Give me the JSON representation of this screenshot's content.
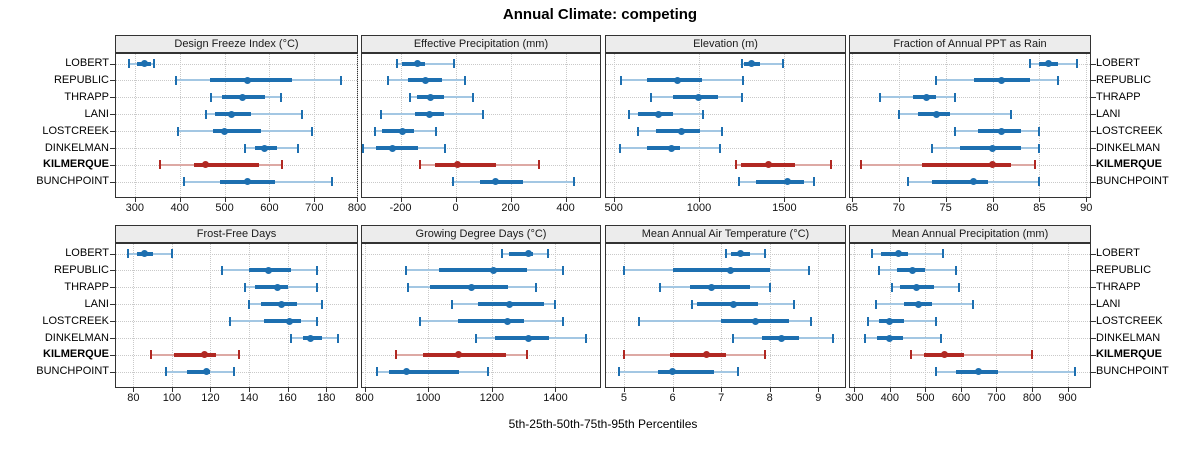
{
  "title": "Annual Climate: competing",
  "axis_label": "5th-25th-50th-75th-95th Percentiles",
  "colors": {
    "normal": "#1d6fb0",
    "normal_light": "#a3c7e3",
    "highlight": "#b12822",
    "highlight_light": "#dda9a4",
    "strip_bg": "#ececec",
    "panel_border": "#333333",
    "grid": "#c9c9c9"
  },
  "chart_data": {
    "type": "dot-whisker-trellis",
    "title": "Annual Climate: competing",
    "xlabel": "5th-25th-50th-75th-95th Percentiles",
    "percentile_levels": [
      "5th",
      "25th",
      "50th",
      "75th",
      "95th"
    ],
    "sites": [
      "LOBERT",
      "REPUBLIC",
      "THRAPP",
      "LANI",
      "LOSTCREEK",
      "DINKELMAN",
      "KILMERQUE",
      "BUNCHPOINT"
    ],
    "highlight_site": "KILMERQUE",
    "legend_position": "none",
    "grid": "dotted",
    "panels": [
      {
        "title": "Design Freeze Index (°C)",
        "grid_row": 0,
        "grid_col": 0,
        "xlim": [
          258,
          795
        ],
        "ticks": [
          300,
          400,
          500,
          600,
          700,
          800
        ],
        "values": [
          [
            288,
            304,
            322,
            337,
            343
          ],
          [
            392,
            467,
            550,
            650,
            760
          ],
          [
            469,
            494,
            540,
            590,
            626
          ],
          [
            458,
            478,
            515,
            558,
            672
          ],
          [
            397,
            474,
            500,
            580,
            695
          ],
          [
            546,
            567,
            589,
            617,
            663
          ],
          [
            355,
            432,
            457,
            576,
            628
          ],
          [
            410,
            489,
            551,
            613,
            739
          ]
        ]
      },
      {
        "title": "Effective Precipitation (mm)",
        "grid_row": 0,
        "grid_col": 1,
        "xlim": [
          -340,
          525
        ],
        "ticks": [
          -200,
          0,
          200,
          400
        ],
        "values": [
          [
            -213,
            -196,
            -140,
            -111,
            -6
          ],
          [
            -245,
            -172,
            -110,
            -50,
            33
          ],
          [
            -164,
            -140,
            -90,
            -41,
            62
          ],
          [
            -271,
            -149,
            -96,
            -43,
            99
          ],
          [
            -292,
            -269,
            -191,
            -152,
            -70
          ],
          [
            -337,
            -290,
            -228,
            -135,
            -39
          ],
          [
            -129,
            -76,
            6,
            146,
            304
          ],
          [
            -9,
            88,
            146,
            246,
            430
          ]
        ]
      },
      {
        "title": "Elevation (m)",
        "grid_row": 0,
        "grid_col": 2,
        "xlim": [
          455,
          1855
        ],
        "ticks": [
          500,
          1000,
          1500
        ],
        "values": [
          [
            1250,
            1265,
            1310,
            1355,
            1490
          ],
          [
            540,
            695,
            875,
            1020,
            1260
          ],
          [
            720,
            845,
            995,
            1110,
            1250
          ],
          [
            590,
            645,
            765,
            845,
            1025
          ],
          [
            640,
            750,
            895,
            1005,
            1135
          ],
          [
            535,
            695,
            840,
            890,
            1120
          ],
          [
            1215,
            1245,
            1405,
            1560,
            1775
          ],
          [
            1235,
            1335,
            1520,
            1615,
            1675
          ]
        ]
      },
      {
        "title": "Fraction of Annual PPT as Rain",
        "grid_row": 0,
        "grid_col": 3,
        "xlim": [
          64.8,
          90.4
        ],
        "ticks": [
          65,
          70,
          75,
          80,
          85,
          90
        ],
        "values": [
          [
            84,
            85,
            86,
            87,
            89
          ],
          [
            74,
            78,
            81,
            84,
            87
          ],
          [
            68,
            71.5,
            73,
            74,
            76
          ],
          [
            70,
            72,
            74,
            75.5,
            82
          ],
          [
            76,
            78.5,
            81,
            83,
            85
          ],
          [
            73.5,
            76.5,
            80,
            83,
            85
          ],
          [
            66,
            72.5,
            80,
            82,
            84.5
          ],
          [
            71,
            73.5,
            78,
            79.5,
            85
          ]
        ]
      },
      {
        "title": "Frost-Free Days",
        "grid_row": 1,
        "grid_col": 0,
        "xlim": [
          71,
          196
        ],
        "ticks": [
          80,
          100,
          120,
          140,
          160,
          180
        ],
        "values": [
          [
            77,
            82,
            86,
            90,
            100
          ],
          [
            126,
            140,
            150,
            162,
            175
          ],
          [
            138,
            143,
            155,
            160,
            175
          ],
          [
            140,
            146,
            157,
            165,
            178
          ],
          [
            130,
            148,
            161,
            167,
            175
          ],
          [
            162,
            168,
            172,
            178,
            186
          ],
          [
            89,
            101,
            117,
            123,
            135
          ],
          [
            97,
            108,
            118,
            120,
            132
          ]
        ]
      },
      {
        "title": "Growing Degree Days (°C)",
        "grid_row": 1,
        "grid_col": 1,
        "xlim": [
          792,
          1540
        ],
        "ticks": [
          800,
          1000,
          1200,
          1400
        ],
        "values": [
          [
            1233,
            1255,
            1315,
            1330,
            1378
          ],
          [
            930,
            1035,
            1205,
            1310,
            1425
          ],
          [
            935,
            1005,
            1135,
            1250,
            1340
          ],
          [
            1075,
            1155,
            1255,
            1365,
            1400
          ],
          [
            975,
            1095,
            1250,
            1300,
            1425
          ],
          [
            1150,
            1210,
            1315,
            1380,
            1495
          ],
          [
            900,
            985,
            1095,
            1245,
            1310
          ],
          [
            838,
            876,
            932,
            1096,
            1189
          ]
        ]
      },
      {
        "title": "Mean Annual Air Temperature (°C)",
        "grid_row": 1,
        "grid_col": 2,
        "xlim": [
          4.63,
          9.55
        ],
        "ticks": [
          5,
          6,
          7,
          8,
          9
        ],
        "values": [
          [
            7.1,
            7.2,
            7.4,
            7.6,
            7.9
          ],
          [
            5.0,
            6.0,
            7.2,
            8.0,
            8.8
          ],
          [
            5.75,
            6.35,
            6.8,
            7.6,
            8.0
          ],
          [
            6.4,
            6.5,
            7.25,
            7.75,
            8.5
          ],
          [
            5.3,
            7.0,
            7.7,
            8.4,
            8.85
          ],
          [
            7.25,
            7.85,
            8.25,
            8.6,
            9.3
          ],
          [
            5.0,
            5.95,
            6.7,
            7.1,
            7.9
          ],
          [
            4.9,
            5.7,
            6.0,
            6.85,
            7.35
          ]
        ]
      },
      {
        "title": "Mean Annual Precipitation (mm)",
        "grid_row": 1,
        "grid_col": 3,
        "xlim": [
          288,
          963
        ],
        "ticks": [
          300,
          400,
          500,
          600,
          700,
          800,
          900
        ],
        "values": [
          [
            350,
            375,
            425,
            450,
            550
          ],
          [
            370,
            420,
            465,
            500,
            585
          ],
          [
            405,
            430,
            475,
            525,
            595
          ],
          [
            360,
            440,
            480,
            520,
            635
          ],
          [
            340,
            370,
            400,
            440,
            530
          ],
          [
            330,
            365,
            398,
            437,
            545
          ],
          [
            460,
            495,
            555,
            610,
            800
          ],
          [
            530,
            585,
            650,
            705,
            920
          ]
        ]
      }
    ]
  }
}
